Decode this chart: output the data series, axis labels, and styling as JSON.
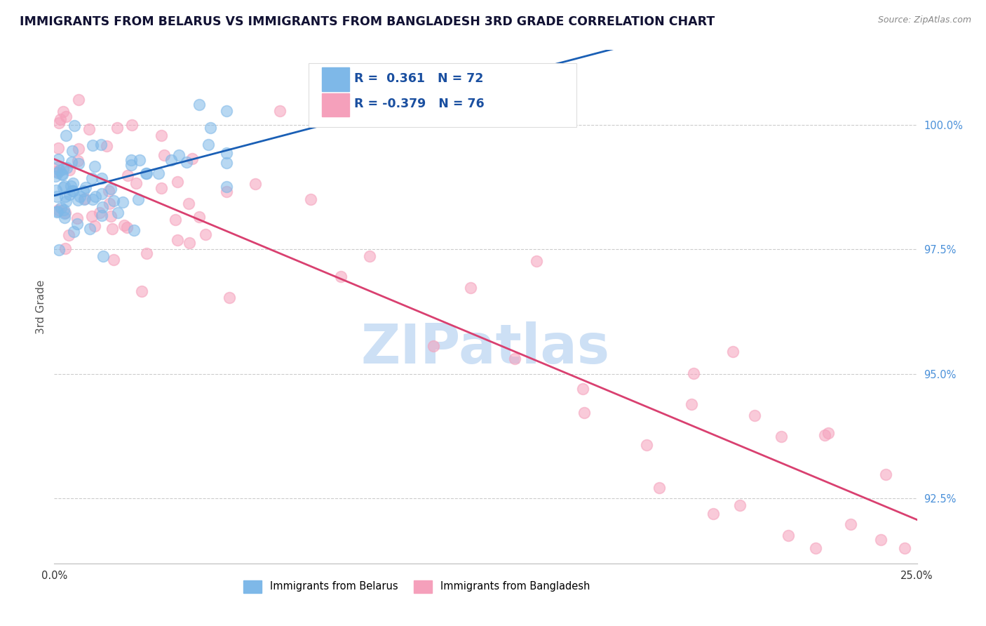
{
  "title": "IMMIGRANTS FROM BELARUS VS IMMIGRANTS FROM BANGLADESH 3RD GRADE CORRELATION CHART",
  "source": "Source: ZipAtlas.com",
  "ylabel": "3rd Grade",
  "y_ticks": [
    92.5,
    95.0,
    97.5,
    100.0
  ],
  "x_range": [
    0.0,
    25.0
  ],
  "y_min": 91.2,
  "y_max": 101.5,
  "belarus_R": 0.361,
  "belarus_N": 72,
  "bangladesh_R": -0.379,
  "bangladesh_N": 76,
  "belarus_color": "#7eb8e8",
  "bangladesh_color": "#f5a0bb",
  "belarus_line_color": "#1a5fb5",
  "bangladesh_line_color": "#d94070",
  "watermark": "ZIPatlas",
  "watermark_color": "#cde0f5",
  "legend_label_belarus": "Immigrants from Belarus",
  "legend_label_bangladesh": "Immigrants from Bangladesh",
  "bel_seed": 42,
  "ban_seed": 17
}
